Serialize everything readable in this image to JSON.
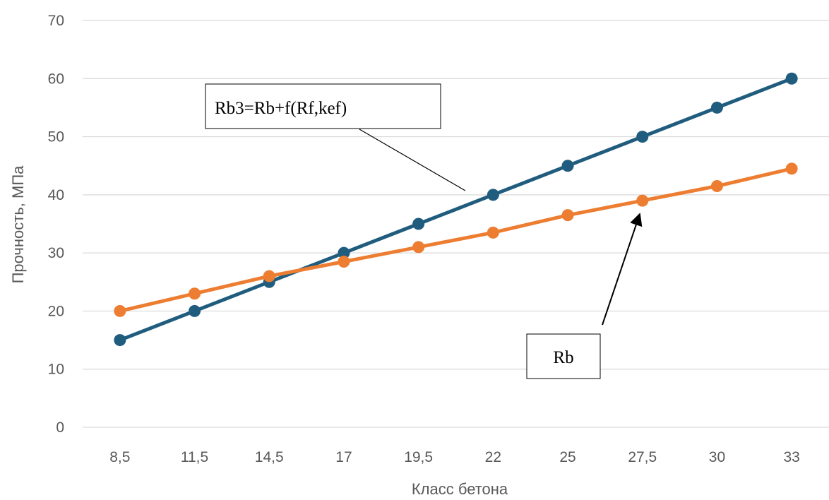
{
  "chart_data": {
    "type": "line",
    "title": "",
    "xlabel": "Класс бетона",
    "ylabel": "Прочность, МПа",
    "categories": [
      "8,5",
      "11,5",
      "14,5",
      "17",
      "19,5",
      "22",
      "25",
      "27,5",
      "30",
      "33"
    ],
    "ylim": [
      0,
      70
    ],
    "yticks": [
      0,
      10,
      20,
      30,
      40,
      50,
      60,
      70
    ],
    "grid": "horizontal",
    "legend": "none",
    "series": [
      {
        "name": "",
        "color": "#1F5C7D",
        "values": [
          15,
          20,
          25,
          30,
          35,
          40,
          45,
          50,
          55,
          60
        ]
      },
      {
        "name": "",
        "color": "#ED7D31",
        "values": [
          20,
          23,
          26,
          28.5,
          31,
          33.5,
          36.5,
          39,
          41.5,
          44.5
        ]
      }
    ],
    "annotations": [
      {
        "text": "Rb3=Rb+f(Rf,kef)",
        "series": 0
      },
      {
        "text": "Rb",
        "series": 1
      }
    ]
  }
}
